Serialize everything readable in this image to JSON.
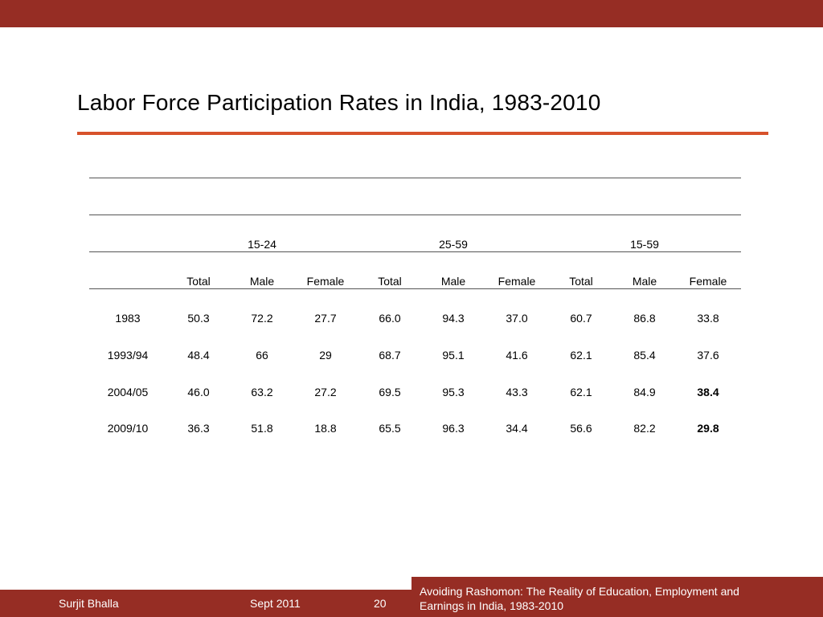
{
  "slide": {
    "title": "Labor Force Participation Rates in India, 1983-2010"
  },
  "table": {
    "age_groups": [
      "15-24",
      "25-59",
      "15-59"
    ],
    "columns": [
      "Total",
      "Male",
      "Female",
      "Total",
      "Male",
      "Female",
      "Total",
      "Male",
      "Female"
    ],
    "rows": [
      {
        "year": "1983",
        "values": [
          "50.3",
          "72.2",
          "27.7",
          "66.0",
          "94.3",
          "37.0",
          "60.7",
          "86.8",
          "33.8"
        ]
      },
      {
        "year": "1993/94",
        "values": [
          "48.4",
          "66",
          "29",
          "68.7",
          "95.1",
          "41.6",
          "62.1",
          "85.4",
          "37.6"
        ]
      },
      {
        "year": "2004/05",
        "values": [
          "46.0",
          "63.2",
          "27.2",
          "69.5",
          "95.3",
          "43.3",
          "62.1",
          "84.9",
          "38.4"
        ]
      },
      {
        "year": "2009/10",
        "values": [
          "36.3",
          "51.8",
          "18.8",
          "65.5",
          "96.3",
          "34.4",
          "56.6",
          "82.2",
          "29.8"
        ]
      }
    ]
  },
  "footer": {
    "author": "Surjit Bhalla",
    "date": "Sept 2011",
    "page": "20",
    "presentation_line1": "Avoiding Rashomon: The Reality of Education, Employment and",
    "presentation_line2": "Earnings in India, 1983-2010"
  }
}
